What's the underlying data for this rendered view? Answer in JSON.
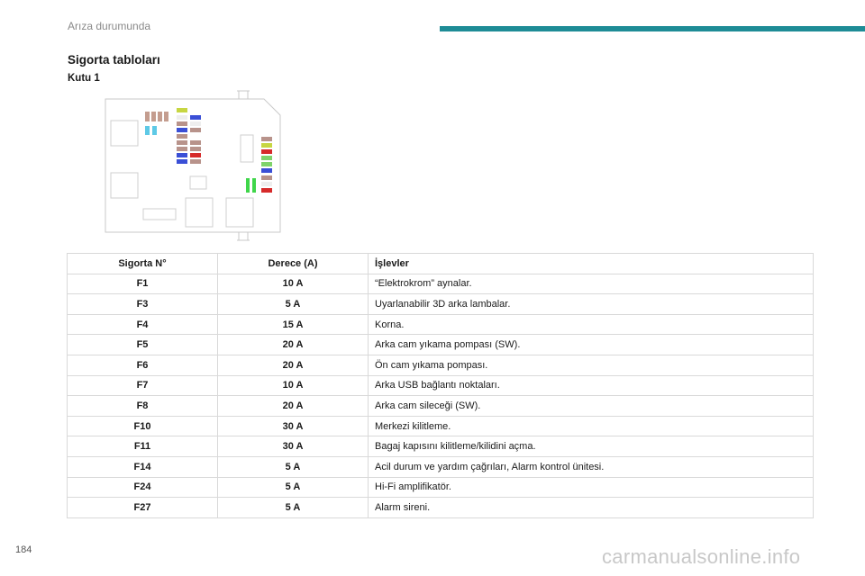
{
  "header": {
    "section": "Arıza durumunda",
    "accent_color": "#1e8c96"
  },
  "title": "Sigorta tabloları",
  "subtitle": "Kutu 1",
  "table": {
    "headers": [
      "Sigorta N°",
      "Derece (A)",
      "İşlevler"
    ],
    "rows": [
      {
        "fuse": "F1",
        "rating": "10 A",
        "function": "“Elektrokrom” aynalar."
      },
      {
        "fuse": "F3",
        "rating": "5 A",
        "function": "Uyarlanabilir 3D arka lambalar."
      },
      {
        "fuse": "F4",
        "rating": "15 A",
        "function": "Korna."
      },
      {
        "fuse": "F5",
        "rating": "20 A",
        "function": "Arka cam yıkama pompası (SW)."
      },
      {
        "fuse": "F6",
        "rating": "20 A",
        "function": "Ön cam yıkama pompası."
      },
      {
        "fuse": "F7",
        "rating": "10 A",
        "function": "Arka USB bağlantı noktaları."
      },
      {
        "fuse": "F8",
        "rating": "20 A",
        "function": "Arka cam sileceği (SW)."
      },
      {
        "fuse": "F10",
        "rating": "30 A",
        "function": "Merkezi kilitleme."
      },
      {
        "fuse": "F11",
        "rating": "30 A",
        "function": "Bagaj kapısını kilitleme/kilidini açma."
      },
      {
        "fuse": "F14",
        "rating": "5 A",
        "function": "Acil durum ve yardım çağrıları, Alarm kontrol ünitesi."
      },
      {
        "fuse": "F24",
        "rating": "5 A",
        "function": "Hi-Fi amplifikatör."
      },
      {
        "fuse": "F27",
        "rating": "5 A",
        "function": "Alarm sireni."
      }
    ]
  },
  "page_number": "184",
  "watermark": "carmanualsonline.info"
}
